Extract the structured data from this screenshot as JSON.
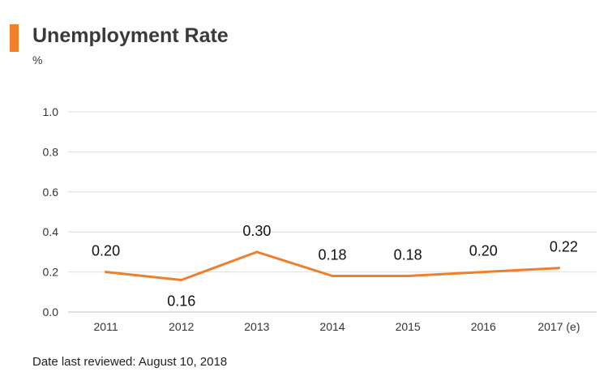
{
  "header": {
    "title": "Unemployment Rate",
    "unit": "%"
  },
  "colors": {
    "accent": "#f47f2a",
    "line": "#ee7f2d",
    "grid": "#dddddd",
    "axis_text": "#333333"
  },
  "chart_data": {
    "type": "line",
    "title": "Unemployment Rate",
    "ylabel": "%",
    "xlabel": "",
    "categories": [
      "2011",
      "2012",
      "2013",
      "2014",
      "2015",
      "2016",
      "2017 (e)"
    ],
    "series": [
      {
        "values": [
          0.2,
          0.16,
          0.3,
          0.18,
          0.18,
          0.2,
          0.22
        ]
      }
    ],
    "data_labels": [
      "0.20",
      "0.16",
      "0.30",
      "0.18",
      "0.18",
      "0.20",
      "0.22"
    ],
    "ylim": [
      0,
      1.0
    ],
    "yticks": [
      "0.0",
      "0.2",
      "0.4",
      "0.6",
      "0.8",
      "1.0"
    ],
    "grid": true,
    "legend": "none"
  },
  "footer": {
    "note": "Date last reviewed: August 10, 2018"
  }
}
